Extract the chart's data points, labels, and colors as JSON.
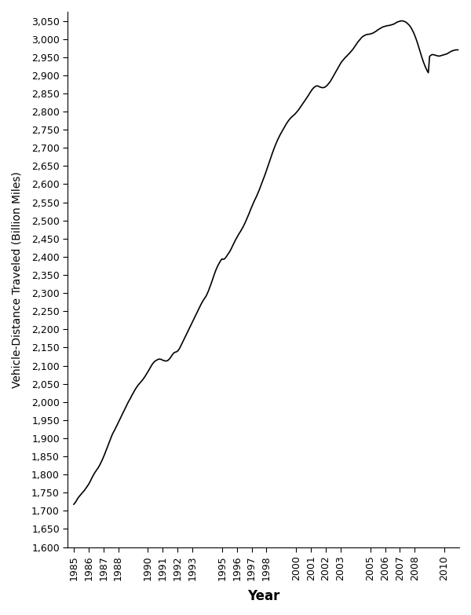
{
  "xlabel": "Year",
  "ylabel": "Vehicle-Distance Traveled (Billion Miles)",
  "xlim": [
    1984.6,
    2011.0
  ],
  "ylim": [
    1600,
    3075
  ],
  "ytick_min": 1600,
  "ytick_max": 3050,
  "ytick_step": 50,
  "xtick_labels": [
    1985,
    1986,
    1987,
    1988,
    1990,
    1991,
    1992,
    1993,
    1995,
    1996,
    1997,
    1998,
    2000,
    2001,
    2002,
    2003,
    2005,
    2006,
    2007,
    2008,
    2010
  ],
  "line_color": "#000000",
  "line_width": 1.2,
  "background_color": "#ffffff",
  "data_x": [
    1985.0,
    1985.083,
    1985.167,
    1985.25,
    1985.333,
    1985.417,
    1985.5,
    1985.583,
    1985.667,
    1985.75,
    1985.833,
    1985.917,
    1986.0,
    1986.083,
    1986.167,
    1986.25,
    1986.333,
    1986.417,
    1986.5,
    1986.583,
    1986.667,
    1986.75,
    1986.833,
    1986.917,
    1987.0,
    1987.083,
    1987.167,
    1987.25,
    1987.333,
    1987.417,
    1987.5,
    1987.583,
    1987.667,
    1987.75,
    1987.833,
    1987.917,
    1988.0,
    1988.083,
    1988.167,
    1988.25,
    1988.333,
    1988.417,
    1988.5,
    1988.583,
    1988.667,
    1988.75,
    1988.833,
    1988.917,
    1989.0,
    1989.083,
    1989.167,
    1989.25,
    1989.333,
    1989.417,
    1989.5,
    1989.583,
    1989.667,
    1989.75,
    1989.833,
    1989.917,
    1990.0,
    1990.083,
    1990.167,
    1990.25,
    1990.333,
    1990.417,
    1990.5,
    1990.583,
    1990.667,
    1990.75,
    1990.833,
    1990.917,
    1991.0,
    1991.083,
    1991.167,
    1991.25,
    1991.333,
    1991.417,
    1991.5,
    1991.583,
    1991.667,
    1991.75,
    1991.833,
    1991.917,
    1992.0,
    1992.083,
    1992.167,
    1992.25,
    1992.333,
    1992.417,
    1992.5,
    1992.583,
    1992.667,
    1992.75,
    1992.833,
    1992.917,
    1993.0,
    1993.083,
    1993.167,
    1993.25,
    1993.333,
    1993.417,
    1993.5,
    1993.583,
    1993.667,
    1993.75,
    1993.833,
    1993.917,
    1994.0,
    1994.083,
    1994.167,
    1994.25,
    1994.333,
    1994.417,
    1994.5,
    1994.583,
    1994.667,
    1994.75,
    1994.833,
    1994.917,
    1995.0,
    1995.083,
    1995.167,
    1995.25,
    1995.333,
    1995.417,
    1995.5,
    1995.583,
    1995.667,
    1995.75,
    1995.833,
    1995.917,
    1996.0,
    1996.083,
    1996.167,
    1996.25,
    1996.333,
    1996.417,
    1996.5,
    1996.583,
    1996.667,
    1996.75,
    1996.833,
    1996.917,
    1997.0,
    1997.083,
    1997.167,
    1997.25,
    1997.333,
    1997.417,
    1997.5,
    1997.583,
    1997.667,
    1997.75,
    1997.833,
    1997.917,
    1998.0,
    1998.083,
    1998.167,
    1998.25,
    1998.333,
    1998.417,
    1998.5,
    1998.583,
    1998.667,
    1998.75,
    1998.833,
    1998.917,
    1999.0,
    1999.083,
    1999.167,
    1999.25,
    1999.333,
    1999.417,
    1999.5,
    1999.583,
    1999.667,
    1999.75,
    1999.833,
    1999.917,
    2000.0,
    2000.083,
    2000.167,
    2000.25,
    2000.333,
    2000.417,
    2000.5,
    2000.583,
    2000.667,
    2000.75,
    2000.833,
    2000.917,
    2001.0,
    2001.083,
    2001.167,
    2001.25,
    2001.333,
    2001.417,
    2001.5,
    2001.583,
    2001.667,
    2001.75,
    2001.833,
    2001.917,
    2002.0,
    2002.083,
    2002.167,
    2002.25,
    2002.333,
    2002.417,
    2002.5,
    2002.583,
    2002.667,
    2002.75,
    2002.833,
    2002.917,
    2003.0,
    2003.083,
    2003.167,
    2003.25,
    2003.333,
    2003.417,
    2003.5,
    2003.583,
    2003.667,
    2003.75,
    2003.833,
    2003.917,
    2004.0,
    2004.083,
    2004.167,
    2004.25,
    2004.333,
    2004.417,
    2004.5,
    2004.583,
    2004.667,
    2004.75,
    2004.833,
    2004.917,
    2005.0,
    2005.083,
    2005.167,
    2005.25,
    2005.333,
    2005.417,
    2005.5,
    2005.583,
    2005.667,
    2005.75,
    2005.833,
    2005.917,
    2006.0,
    2006.083,
    2006.167,
    2006.25,
    2006.333,
    2006.417,
    2006.5,
    2006.583,
    2006.667,
    2006.75,
    2006.833,
    2006.917,
    2007.0,
    2007.083,
    2007.167,
    2007.25,
    2007.333,
    2007.417,
    2007.5,
    2007.583,
    2007.667,
    2007.75,
    2007.833,
    2007.917,
    2008.0,
    2008.083,
    2008.167,
    2008.25,
    2008.333,
    2008.417,
    2008.5,
    2008.583,
    2008.667,
    2008.75,
    2008.833,
    2008.917,
    2009.0,
    2009.083,
    2009.167,
    2009.25,
    2009.333,
    2009.417,
    2009.5,
    2009.583,
    2009.667,
    2009.75,
    2009.833,
    2009.917,
    2010.0,
    2010.083,
    2010.167,
    2010.25,
    2010.333,
    2010.417,
    2010.5,
    2010.583,
    2010.667,
    2010.75,
    2010.833,
    2010.917
  ],
  "data_y": [
    1718,
    1722,
    1727,
    1733,
    1738,
    1742,
    1746,
    1750,
    1754,
    1758,
    1763,
    1768,
    1773,
    1779,
    1786,
    1793,
    1799,
    1805,
    1810,
    1815,
    1820,
    1826,
    1833,
    1840,
    1848,
    1856,
    1865,
    1874,
    1883,
    1892,
    1901,
    1909,
    1916,
    1922,
    1929,
    1936,
    1943,
    1950,
    1957,
    1964,
    1971,
    1978,
    1985,
    1992,
    1999,
    2005,
    2011,
    2018,
    2024,
    2030,
    2036,
    2041,
    2046,
    2050,
    2054,
    2058,
    2062,
    2067,
    2072,
    2078,
    2083,
    2089,
    2095,
    2101,
    2106,
    2110,
    2113,
    2115,
    2117,
    2118,
    2118,
    2117,
    2115,
    2114,
    2113,
    2113,
    2114,
    2117,
    2121,
    2126,
    2131,
    2135,
    2137,
    2138,
    2140,
    2144,
    2150,
    2157,
    2164,
    2171,
    2178,
    2185,
    2192,
    2199,
    2206,
    2213,
    2220,
    2227,
    2234,
    2241,
    2248,
    2255,
    2262,
    2269,
    2275,
    2281,
    2286,
    2291,
    2298,
    2306,
    2315,
    2324,
    2334,
    2344,
    2354,
    2363,
    2371,
    2378,
    2384,
    2390,
    2394,
    2393,
    2394,
    2398,
    2403,
    2408,
    2413,
    2419,
    2426,
    2433,
    2440,
    2447,
    2453,
    2459,
    2465,
    2470,
    2476,
    2482,
    2489,
    2496,
    2504,
    2512,
    2520,
    2529,
    2537,
    2545,
    2553,
    2560,
    2567,
    2575,
    2583,
    2592,
    2601,
    2610,
    2619,
    2628,
    2638,
    2648,
    2658,
    2668,
    2678,
    2688,
    2697,
    2706,
    2714,
    2722,
    2729,
    2736,
    2742,
    2748,
    2754,
    2760,
    2766,
    2771,
    2776,
    2780,
    2784,
    2787,
    2790,
    2793,
    2797,
    2801,
    2805,
    2810,
    2815,
    2820,
    2825,
    2830,
    2835,
    2840,
    2845,
    2851,
    2856,
    2861,
    2865,
    2868,
    2870,
    2871,
    2870,
    2868,
    2867,
    2866,
    2866,
    2867,
    2869,
    2872,
    2876,
    2880,
    2885,
    2891,
    2897,
    2903,
    2909,
    2915,
    2921,
    2927,
    2933,
    2938,
    2942,
    2946,
    2950,
    2953,
    2957,
    2960,
    2964,
    2968,
    2972,
    2977,
    2982,
    2987,
    2992,
    2996,
    3000,
    3004,
    3007,
    3009,
    3011,
    3012,
    3013,
    3013,
    3014,
    3015,
    3016,
    3018,
    3020,
    3022,
    3025,
    3027,
    3029,
    3031,
    3033,
    3034,
    3035,
    3036,
    3037,
    3037,
    3038,
    3039,
    3040,
    3041,
    3043,
    3045,
    3047,
    3048,
    3049,
    3050,
    3050,
    3049,
    3048,
    3046,
    3043,
    3040,
    3036,
    3031,
    3025,
    3018,
    3010,
    3001,
    2991,
    2980,
    2969,
    2958,
    2947,
    2937,
    2928,
    2920,
    2913,
    2907,
    2952,
    2955,
    2957,
    2957,
    2956,
    2955,
    2954,
    2953,
    2953,
    2954,
    2955,
    2956,
    2957,
    2958,
    2959,
    2961,
    2963,
    2965,
    2967,
    2968,
    2969,
    2970,
    2970,
    2970
  ]
}
